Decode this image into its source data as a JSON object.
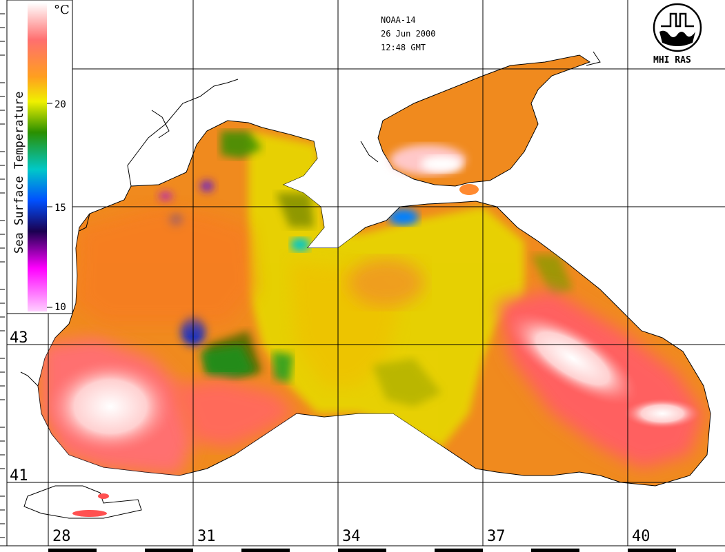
{
  "header": {
    "satellite": "NOAA-14",
    "date": "26 Jun 2000",
    "time": "12:48 GMT"
  },
  "logo": {
    "text": "MHI RAS"
  },
  "legend": {
    "title": "Sea Surface Temperature",
    "unit": "°C",
    "ticks": [
      "20",
      "15",
      "10"
    ],
    "colors": [
      "#ffffff",
      "#ff6f6f",
      "#ff9f1f",
      "#f0f000",
      "#2a8f00",
      "#00c8c8",
      "#0050ff",
      "#1a0050",
      "#ff00ff",
      "#ffd0ff"
    ]
  },
  "axes": {
    "lat_labels": [
      "43",
      "41"
    ],
    "lon_labels": [
      "28",
      "31",
      "34",
      "37",
      "40"
    ]
  }
}
